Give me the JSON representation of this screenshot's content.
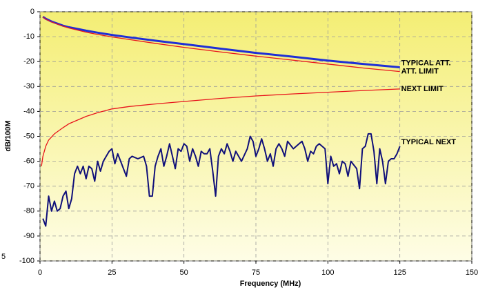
{
  "chart_data": {
    "type": "line",
    "x_label": "Frequency (MHz)",
    "y_label": "dB/100M",
    "corner_text": "5",
    "xlim": [
      0,
      150
    ],
    "xticks": [
      0,
      25,
      50,
      75,
      100,
      125,
      150
    ],
    "ylim": [
      -100,
      0
    ],
    "yticks": [
      0,
      -10,
      -20,
      -30,
      -40,
      -50,
      -60,
      -70,
      -80,
      -90,
      -100
    ],
    "grid": true,
    "series": [
      {
        "name": "TYPICAL ATT.",
        "color": "#1f2fd6",
        "width": 3,
        "x": [
          1,
          2,
          4,
          8,
          10,
          16,
          20,
          25,
          31.25,
          40,
          50,
          62.5,
          75,
          87.5,
          100,
          112.5,
          125
        ],
        "values": [
          -2,
          -2.8,
          -3.9,
          -5.6,
          -6.2,
          -7.6,
          -8.4,
          -9.3,
          -10.3,
          -11.6,
          -13,
          -14.8,
          -16.5,
          -18,
          -19.6,
          -21,
          -22.3
        ]
      },
      {
        "name": "ATT. LIMIT",
        "color": "#e8141c",
        "width": 1.3,
        "x": [
          1,
          2,
          4,
          8,
          10,
          16,
          20,
          25,
          31.25,
          40,
          50,
          62.5,
          75,
          87.5,
          100,
          112.5,
          125
        ],
        "values": [
          -2.1,
          -3,
          -4.1,
          -5.8,
          -6.5,
          -8.2,
          -9.1,
          -10.1,
          -11.2,
          -12.7,
          -14.3,
          -16.1,
          -17.8,
          -19.4,
          -21,
          -22.6,
          -24
        ]
      },
      {
        "name": "NEXT LIMIT",
        "color": "#e8141c",
        "width": 1.3,
        "x": [
          0.5,
          1,
          2,
          3,
          5,
          8,
          10,
          16,
          20,
          25,
          31.25,
          40,
          50,
          62.5,
          75,
          87.5,
          100,
          112.5,
          125
        ],
        "values": [
          -62,
          -58,
          -54,
          -51.5,
          -49,
          -46.5,
          -45,
          -42,
          -40.5,
          -39,
          -38,
          -37,
          -36,
          -34.8,
          -33.8,
          -33,
          -32.3,
          -31.6,
          -31
        ]
      },
      {
        "name": "TYPICAL NEXT",
        "color": "#10107a",
        "width": 2,
        "x": [
          1,
          2,
          3,
          4,
          5,
          6,
          7,
          8,
          9,
          10,
          11,
          12,
          13,
          14,
          15,
          16,
          17,
          18,
          19,
          20,
          21,
          22,
          23,
          24,
          25,
          26,
          27,
          28,
          29,
          30,
          31,
          32,
          34,
          36,
          37,
          38,
          39,
          40,
          41,
          42,
          43,
          44,
          45,
          46,
          47,
          48,
          49,
          50,
          51,
          52,
          53,
          54,
          55,
          56,
          57,
          58,
          59,
          60,
          61,
          62,
          63,
          64,
          65,
          66,
          67,
          68,
          70,
          72,
          73,
          74,
          75,
          76,
          77,
          78,
          79,
          80,
          81,
          82,
          83,
          84,
          85,
          86,
          88,
          90,
          91,
          92,
          93,
          94,
          95,
          96,
          97,
          98,
          99,
          100,
          101,
          102,
          103,
          104,
          105,
          106,
          107,
          108,
          110,
          111,
          112,
          113,
          114,
          115,
          116,
          117,
          118,
          119,
          120,
          121,
          122,
          123,
          124,
          125
        ],
        "values": [
          -83,
          -86,
          -74,
          -80,
          -76,
          -80,
          -79,
          -74,
          -72,
          -79,
          -75,
          -65,
          -62,
          -65,
          -62,
          -67,
          -62,
          -63,
          -68,
          -60,
          -64,
          -60,
          -58,
          -56,
          -55,
          -61,
          -57,
          -60,
          -63,
          -66,
          -59,
          -58,
          -59,
          -58,
          -62,
          -74,
          -74,
          -62,
          -58,
          -55,
          -62,
          -58,
          -53,
          -58,
          -63,
          -55,
          -56,
          -53,
          -54,
          -60,
          -55,
          -58,
          -62,
          -56,
          -57,
          -57,
          -55,
          -64,
          -74,
          -58,
          -55,
          -57,
          -53,
          -56,
          -60,
          -56,
          -60,
          -55,
          -50,
          -52,
          -58,
          -55,
          -51,
          -55,
          -60,
          -57,
          -62,
          -55,
          -53,
          -55,
          -58,
          -52,
          -55,
          -53,
          -52,
          -55,
          -60,
          -56,
          -57,
          -54,
          -53,
          -54,
          -55,
          -69,
          -58,
          -62,
          -61,
          -65,
          -60,
          -61,
          -66,
          -60,
          -63,
          -71,
          -55,
          -54,
          -49,
          -49,
          -56,
          -69,
          -55,
          -60,
          -69,
          -60,
          -59,
          -59,
          -57,
          -54
        ]
      }
    ]
  }
}
